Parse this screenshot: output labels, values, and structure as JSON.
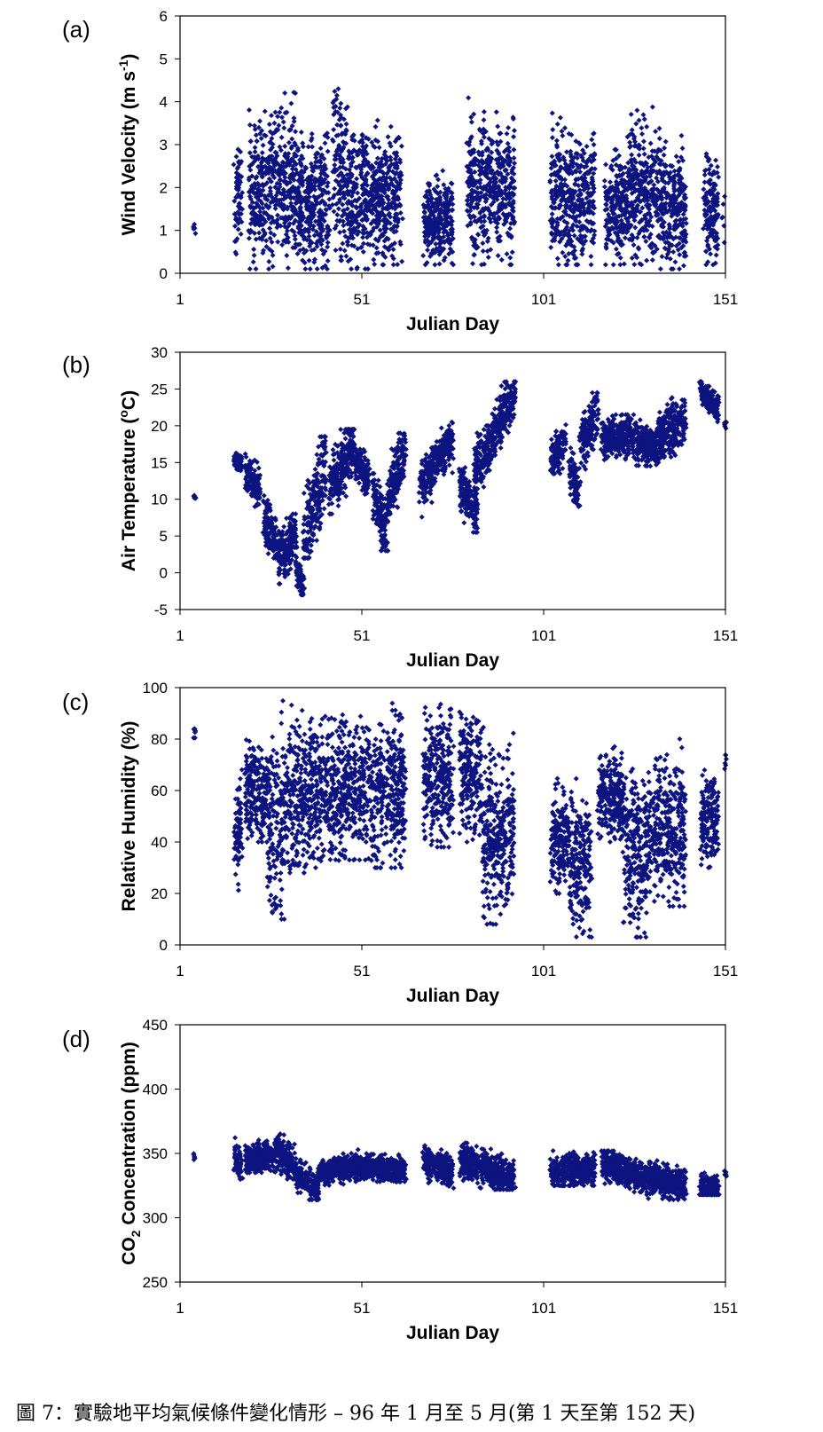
{
  "caption": "圖 7：實驗地平均氣候條件變化情形 – 96 年 1 月至 5 月(第 1 天至第 152 天)",
  "marker_color": "#0d1480",
  "chart_data": [
    {
      "panel": "(a)",
      "type": "scatter",
      "xlabel": "Julian Day",
      "ylabel": "Wind Velocity (m s-1)",
      "xlim": [
        1,
        151
      ],
      "ylim": [
        0,
        6
      ],
      "xticks": [
        "1",
        "51",
        "101",
        "151"
      ],
      "yticks": [
        "0",
        "1",
        "2",
        "3",
        "4",
        "5",
        "6"
      ],
      "grid": false,
      "series_segments": [
        {
          "x": [
            5,
            5
          ],
          "ymin": 0.9,
          "ymax": 1.15,
          "profile": 0
        },
        {
          "x": [
            16,
            18
          ],
          "ymin": 0.2,
          "ymax": 3.9,
          "profile": 1
        },
        {
          "x": [
            20,
            25
          ],
          "ymin": 0.1,
          "ymax": 4.3,
          "profile": 1
        },
        {
          "x": [
            25,
            33
          ],
          "ymin": 0.1,
          "ymax": 4.8,
          "profile": 1
        },
        {
          "x": [
            33,
            42
          ],
          "ymin": 0.1,
          "ymax": 3.8,
          "profile": 1
        },
        {
          "x": [
            43,
            47
          ],
          "ymin": 0.3,
          "ymax": 5.0,
          "profile": 1
        },
        {
          "x": [
            47,
            54
          ],
          "ymin": 0.1,
          "ymax": 4.1,
          "profile": 1
        },
        {
          "x": [
            54,
            62
          ],
          "ymin": 0.2,
          "ymax": 3.9,
          "profile": 1
        },
        {
          "x": [
            68,
            76
          ],
          "ymin": 0.2,
          "ymax": 2.6,
          "profile": 1
        },
        {
          "x": [
            80,
            87
          ],
          "ymin": 0.2,
          "ymax": 4.4,
          "profile": 1
        },
        {
          "x": [
            87,
            93
          ],
          "ymin": 0.2,
          "ymax": 4.2,
          "profile": 1
        },
        {
          "x": [
            103,
            108
          ],
          "ymin": 0.2,
          "ymax": 4.0,
          "profile": 1
        },
        {
          "x": [
            108,
            115
          ],
          "ymin": 0.2,
          "ymax": 4.0,
          "profile": 1
        },
        {
          "x": [
            118,
            124
          ],
          "ymin": 0.2,
          "ymax": 3.2,
          "profile": 1
        },
        {
          "x": [
            124,
            133
          ],
          "ymin": 0.2,
          "ymax": 4.3,
          "profile": 1
        },
        {
          "x": [
            133,
            140
          ],
          "ymin": 0.1,
          "ymax": 3.6,
          "profile": 1
        },
        {
          "x": [
            145,
            149
          ],
          "ymin": 0.2,
          "ymax": 3.3,
          "profile": 1
        },
        {
          "x": [
            150,
            151
          ],
          "ymin": 0.6,
          "ymax": 1.8,
          "profile": 0
        }
      ]
    },
    {
      "panel": "(b)",
      "type": "scatter",
      "xlabel": "Julian Day",
      "ylabel": "Air Temperature (oC)",
      "xlim": [
        1,
        151
      ],
      "ylim": [
        -5,
        30
      ],
      "xticks": [
        "1",
        "51",
        "101",
        "151"
      ],
      "yticks": [
        "-5",
        "0",
        "5",
        "10",
        "15",
        "20",
        "25",
        "30"
      ],
      "grid": false,
      "series_segments": [
        {
          "x": [
            5,
            5
          ],
          "ymin": 10.0,
          "ymax": 10.6,
          "profile": 0
        },
        {
          "x": [
            16,
            18
          ],
          "ymin": 13.5,
          "ymax": 16.5,
          "profile": 2,
          "y0": 15.5,
          "y1": 14.5
        },
        {
          "x": [
            19,
            23
          ],
          "ymin": 9.0,
          "ymax": 16.5,
          "profile": 2,
          "y0": 14,
          "y1": 11
        },
        {
          "x": [
            24,
            28
          ],
          "ymin": 2.0,
          "ymax": 10.5,
          "profile": 2,
          "y0": 8,
          "y1": 3
        },
        {
          "x": [
            28,
            33
          ],
          "ymin": -1.5,
          "ymax": 8.0,
          "profile": 2,
          "y0": 2,
          "y1": 5
        },
        {
          "x": [
            33,
            35
          ],
          "ymin": -3.0,
          "ymax": 3.0,
          "profile": 2,
          "y0": 0,
          "y1": -2
        },
        {
          "x": [
            35,
            41
          ],
          "ymin": 2.0,
          "ymax": 18.5,
          "profile": 2,
          "y0": 4,
          "y1": 15
        },
        {
          "x": [
            42,
            49
          ],
          "ymin": 8.0,
          "ymax": 19.5,
          "profile": 2,
          "y0": 11,
          "y1": 18
        },
        {
          "x": [
            49,
            53
          ],
          "ymin": 10.0,
          "ymax": 17.0,
          "profile": 2,
          "y0": 16,
          "y1": 12
        },
        {
          "x": [
            54,
            58
          ],
          "ymin": 3.0,
          "ymax": 13.5,
          "profile": 2,
          "y0": 11,
          "y1": 5
        },
        {
          "x": [
            58,
            63
          ],
          "ymin": 8.0,
          "ymax": 19.0,
          "profile": 2,
          "y0": 10,
          "y1": 17
        },
        {
          "x": [
            67,
            71
          ],
          "ymin": 7.0,
          "ymax": 17.0,
          "profile": 2,
          "y0": 12,
          "y1": 15
        },
        {
          "x": [
            71,
            76
          ],
          "ymin": 12.0,
          "ymax": 20.5,
          "profile": 2,
          "y0": 15,
          "y1": 18
        },
        {
          "x": [
            78,
            83
          ],
          "ymin": 5.5,
          "ymax": 15.0,
          "profile": 2,
          "y0": 12,
          "y1": 8
        },
        {
          "x": [
            82,
            87
          ],
          "ymin": 10.0,
          "ymax": 20.0,
          "profile": 2,
          "y0": 14,
          "y1": 18
        },
        {
          "x": [
            87,
            93
          ],
          "ymin": 16.0,
          "ymax": 26.0,
          "profile": 2,
          "y0": 19,
          "y1": 24
        },
        {
          "x": [
            103,
            107
          ],
          "ymin": 13.5,
          "ymax": 21.0,
          "profile": 2,
          "y0": 15,
          "y1": 18
        },
        {
          "x": [
            108,
            111
          ],
          "ymin": 9.0,
          "ymax": 17.0,
          "profile": 2,
          "y0": 14,
          "y1": 11
        },
        {
          "x": [
            111,
            116
          ],
          "ymin": 14.0,
          "ymax": 24.5,
          "profile": 2,
          "y0": 17,
          "y1": 22
        },
        {
          "x": [
            117,
            125
          ],
          "ymin": 14.0,
          "ymax": 21.5,
          "profile": 2,
          "y0": 18,
          "y1": 19
        },
        {
          "x": [
            125,
            132
          ],
          "ymin": 14.5,
          "ymax": 21.5,
          "profile": 2,
          "y0": 18,
          "y1": 17
        },
        {
          "x": [
            132,
            140
          ],
          "ymin": 15.0,
          "ymax": 24.5,
          "profile": 2,
          "y0": 18,
          "y1": 21
        },
        {
          "x": [
            144,
            149
          ],
          "ymin": 20.5,
          "ymax": 26.0,
          "profile": 2,
          "y0": 25,
          "y1": 22
        },
        {
          "x": [
            151,
            151
          ],
          "ymin": 19.5,
          "ymax": 20.5,
          "profile": 0
        }
      ]
    },
    {
      "panel": "(c)",
      "type": "scatter",
      "xlabel": "Julian Day",
      "ylabel": "Relative Humidity (%)",
      "xlim": [
        1,
        151
      ],
      "ylim": [
        0,
        100
      ],
      "xticks": [
        "1",
        "51",
        "101",
        "151"
      ],
      "yticks": [
        "0",
        "20",
        "40",
        "60",
        "80",
        "100"
      ],
      "grid": false,
      "series_segments": [
        {
          "x": [
            5,
            5
          ],
          "ymin": 80,
          "ymax": 85,
          "profile": 0
        },
        {
          "x": [
            16,
            18
          ],
          "ymin": 20,
          "ymax": 72,
          "profile": 1
        },
        {
          "x": [
            19,
            25
          ],
          "ymin": 40,
          "ymax": 85,
          "profile": 1
        },
        {
          "x": [
            25,
            30
          ],
          "ymin": 10,
          "ymax": 100,
          "profile": 1
        },
        {
          "x": [
            30,
            38
          ],
          "ymin": 28,
          "ymax": 97,
          "profile": 1
        },
        {
          "x": [
            38,
            46
          ],
          "ymin": 30,
          "ymax": 99,
          "profile": 1
        },
        {
          "x": [
            46,
            53
          ],
          "ymin": 33,
          "ymax": 99,
          "profile": 1
        },
        {
          "x": [
            53,
            63
          ],
          "ymin": 30,
          "ymax": 99,
          "profile": 1
        },
        {
          "x": [
            68,
            76
          ],
          "ymin": 38,
          "ymax": 100,
          "profile": 1
        },
        {
          "x": [
            78,
            84
          ],
          "ymin": 40,
          "ymax": 100,
          "profile": 1
        },
        {
          "x": [
            84,
            93
          ],
          "ymin": 8,
          "ymax": 90,
          "profile": 1
        },
        {
          "x": [
            103,
            108
          ],
          "ymin": 20,
          "ymax": 70,
          "profile": 1
        },
        {
          "x": [
            108,
            114
          ],
          "ymin": 3,
          "ymax": 70,
          "profile": 1
        },
        {
          "x": [
            116,
            123
          ],
          "ymin": 40,
          "ymax": 80,
          "profile": 1
        },
        {
          "x": [
            123,
            130
          ],
          "ymin": 3,
          "ymax": 78,
          "profile": 1
        },
        {
          "x": [
            130,
            140
          ],
          "ymin": 15,
          "ymax": 84,
          "profile": 1
        },
        {
          "x": [
            144,
            149
          ],
          "ymin": 30,
          "ymax": 72,
          "profile": 1
        },
        {
          "x": [
            151,
            151
          ],
          "ymin": 68,
          "ymax": 74,
          "profile": 0
        }
      ]
    },
    {
      "panel": "(d)",
      "type": "scatter",
      "xlabel": "Julian Day",
      "ylabel": "CO2 Concentration (ppm)",
      "xlim": [
        1,
        151
      ],
      "ylim": [
        250,
        450
      ],
      "xticks": [
        "1",
        "51",
        "101",
        "151"
      ],
      "yticks": [
        "250",
        "300",
        "350",
        "400",
        "450"
      ],
      "grid": false,
      "series_segments": [
        {
          "x": [
            5,
            5
          ],
          "ymin": 345,
          "ymax": 352,
          "profile": 0
        },
        {
          "x": [
            16,
            18
          ],
          "ymin": 330,
          "ymax": 368,
          "profile": 2,
          "y0": 345,
          "y1": 338
        },
        {
          "x": [
            19,
            27
          ],
          "ymin": 335,
          "ymax": 367,
          "profile": 2,
          "y0": 345,
          "y1": 348
        },
        {
          "x": [
            27,
            33
          ],
          "ymin": 330,
          "ymax": 368,
          "profile": 2,
          "y0": 355,
          "y1": 338
        },
        {
          "x": [
            33,
            39
          ],
          "ymin": 314,
          "ymax": 345,
          "profile": 2,
          "y0": 335,
          "y1": 320
        },
        {
          "x": [
            39,
            49
          ],
          "ymin": 325,
          "ymax": 350,
          "profile": 2,
          "y0": 335,
          "y1": 340
        },
        {
          "x": [
            49,
            63
          ],
          "ymin": 328,
          "ymax": 355,
          "profile": 2,
          "y0": 340,
          "y1": 336
        },
        {
          "x": [
            68,
            76
          ],
          "ymin": 323,
          "ymax": 356,
          "profile": 2,
          "y0": 345,
          "y1": 335
        },
        {
          "x": [
            78,
            93
          ],
          "ymin": 322,
          "ymax": 358,
          "profile": 2,
          "y0": 345,
          "y1": 330
        },
        {
          "x": [
            103,
            115
          ],
          "ymin": 325,
          "ymax": 360,
          "profile": 2,
          "y0": 335,
          "y1": 338
        },
        {
          "x": [
            117,
            129
          ],
          "ymin": 320,
          "ymax": 352,
          "profile": 2,
          "y0": 343,
          "y1": 330
        },
        {
          "x": [
            129,
            140
          ],
          "ymin": 314,
          "ymax": 349,
          "profile": 2,
          "y0": 332,
          "y1": 325
        },
        {
          "x": [
            144,
            149
          ],
          "ymin": 318,
          "ymax": 345,
          "profile": 2,
          "y0": 325,
          "y1": 322
        },
        {
          "x": [
            151,
            151
          ],
          "ymin": 332,
          "ymax": 337,
          "profile": 0
        }
      ]
    }
  ]
}
